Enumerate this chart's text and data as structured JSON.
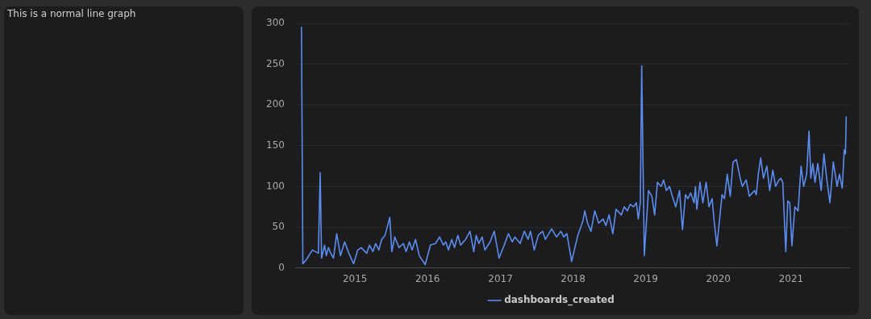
{
  "chart_data": [
    {
      "type": "other",
      "title": "This is a normal line graph"
    },
    {
      "type": "line",
      "legend": "bottom",
      "grid": "y",
      "marker": "none",
      "line_style": "solid",
      "ylim": [
        0,
        300
      ],
      "yticks": [
        0,
        50,
        100,
        150,
        200,
        250,
        300
      ],
      "xlim": [
        "2014-03-10",
        "2021-10-20"
      ],
      "xticks": [
        "2015",
        "2016",
        "2017",
        "2018",
        "2019",
        "2020",
        "2021"
      ],
      "x": [
        "2014-04-07",
        "2014-04-14",
        "2014-05-01",
        "2014-06-01",
        "2014-07-01",
        "2014-07-10",
        "2014-07-17",
        "2014-08-01",
        "2014-08-10",
        "2014-08-20",
        "2014-09-01",
        "2014-09-15",
        "2014-10-01",
        "2014-10-20",
        "2014-11-10",
        "2014-12-01",
        "2014-12-25",
        "2015-01-15",
        "2015-02-01",
        "2015-03-01",
        "2015-03-15",
        "2015-04-01",
        "2015-04-15",
        "2015-05-01",
        "2015-05-15",
        "2015-06-01",
        "2015-06-25",
        "2015-07-05",
        "2015-07-20",
        "2015-08-10",
        "2015-09-01",
        "2015-09-15",
        "2015-10-01",
        "2015-10-15",
        "2015-11-01",
        "2015-11-20",
        "2015-12-20",
        "2016-01-15",
        "2016-02-10",
        "2016-03-01",
        "2016-03-20",
        "2016-04-01",
        "2016-04-15",
        "2016-05-01",
        "2016-05-15",
        "2016-06-01",
        "2016-06-15",
        "2016-07-10",
        "2016-08-01",
        "2016-08-20",
        "2016-09-01",
        "2016-09-15",
        "2016-10-01",
        "2016-10-15",
        "2016-11-10",
        "2016-12-01",
        "2016-12-25",
        "2017-01-20",
        "2017-02-10",
        "2017-03-01",
        "2017-03-15",
        "2017-04-10",
        "2017-05-01",
        "2017-05-20",
        "2017-06-01",
        "2017-06-20",
        "2017-07-10",
        "2017-08-01",
        "2017-08-15",
        "2017-09-01",
        "2017-09-15",
        "2017-10-10",
        "2017-11-01",
        "2017-11-15",
        "2017-12-01",
        "2017-12-25",
        "2018-01-25",
        "2018-02-20",
        "2018-03-01",
        "2018-03-15",
        "2018-04-01",
        "2018-04-20",
        "2018-05-10",
        "2018-06-01",
        "2018-06-15",
        "2018-07-01",
        "2018-07-20",
        "2018-08-05",
        "2018-09-01",
        "2018-09-15",
        "2018-10-01",
        "2018-10-15",
        "2018-11-01",
        "2018-11-15",
        "2018-11-25",
        "2018-12-05",
        "2018-12-12",
        "2018-12-25",
        "2019-01-15",
        "2019-02-01",
        "2019-02-15",
        "2019-03-01",
        "2019-03-20",
        "2019-04-01",
        "2019-04-15",
        "2019-05-01",
        "2019-05-15",
        "2019-06-01",
        "2019-06-20",
        "2019-07-05",
        "2019-07-20",
        "2019-08-01",
        "2019-08-15",
        "2019-09-01",
        "2019-09-08",
        "2019-09-15",
        "2019-10-01",
        "2019-10-15",
        "2019-11-01",
        "2019-11-15",
        "2019-12-01",
        "2019-12-10",
        "2019-12-25",
        "2020-01-20",
        "2020-02-01",
        "2020-02-15",
        "2020-03-01",
        "2020-03-15",
        "2020-04-01",
        "2020-04-20",
        "2020-05-01",
        "2020-05-20",
        "2020-06-05",
        "2020-07-01",
        "2020-07-10",
        "2020-07-20",
        "2020-08-01",
        "2020-08-15",
        "2020-09-01",
        "2020-09-15",
        "2020-10-01",
        "2020-10-15",
        "2020-11-01",
        "2020-11-10",
        "2020-11-20",
        "2020-12-05",
        "2020-12-15",
        "2020-12-25",
        "2021-01-05",
        "2021-01-20",
        "2021-02-05",
        "2021-02-20",
        "2021-03-05",
        "2021-03-20",
        "2021-04-01",
        "2021-04-10",
        "2021-04-20",
        "2021-05-01",
        "2021-05-15",
        "2021-06-01",
        "2021-06-15",
        "2021-07-01",
        "2021-07-15",
        "2021-08-01",
        "2021-08-20",
        "2021-09-01",
        "2021-09-15",
        "2021-09-25",
        "2021-10-01",
        "2021-10-05"
      ],
      "series": [
        {
          "name": "dashboards_created",
          "color": "#5b8def",
          "values": [
            296,
            5,
            10,
            22,
            18,
            117,
            12,
            28,
            15,
            25,
            18,
            12,
            42,
            15,
            32,
            18,
            5,
            22,
            25,
            18,
            28,
            20,
            30,
            22,
            35,
            40,
            62,
            20,
            38,
            25,
            30,
            20,
            32,
            22,
            35,
            15,
            4,
            28,
            30,
            38,
            28,
            32,
            22,
            35,
            25,
            40,
            28,
            35,
            45,
            20,
            40,
            30,
            38,
            22,
            32,
            45,
            12,
            28,
            42,
            32,
            38,
            30,
            45,
            35,
            45,
            22,
            40,
            45,
            35,
            42,
            48,
            38,
            45,
            38,
            42,
            8,
            40,
            58,
            70,
            55,
            45,
            70,
            55,
            60,
            52,
            65,
            42,
            72,
            65,
            75,
            70,
            78,
            75,
            80,
            60,
            80,
            248,
            15,
            95,
            88,
            65,
            105,
            100,
            108,
            95,
            100,
            88,
            75,
            95,
            47,
            90,
            85,
            92,
            80,
            100,
            72,
            105,
            80,
            105,
            75,
            85,
            60,
            27,
            90,
            85,
            115,
            88,
            130,
            133,
            110,
            100,
            108,
            88,
            95,
            90,
            115,
            135,
            110,
            125,
            95,
            120,
            100,
            108,
            110,
            105,
            20,
            82,
            80,
            27,
            75,
            70,
            125,
            100,
            115,
            168,
            110,
            128,
            105,
            128,
            95,
            140,
            105,
            80,
            130,
            100,
            115,
            98,
            145,
            140,
            186
          ]
        }
      ]
    }
  ]
}
